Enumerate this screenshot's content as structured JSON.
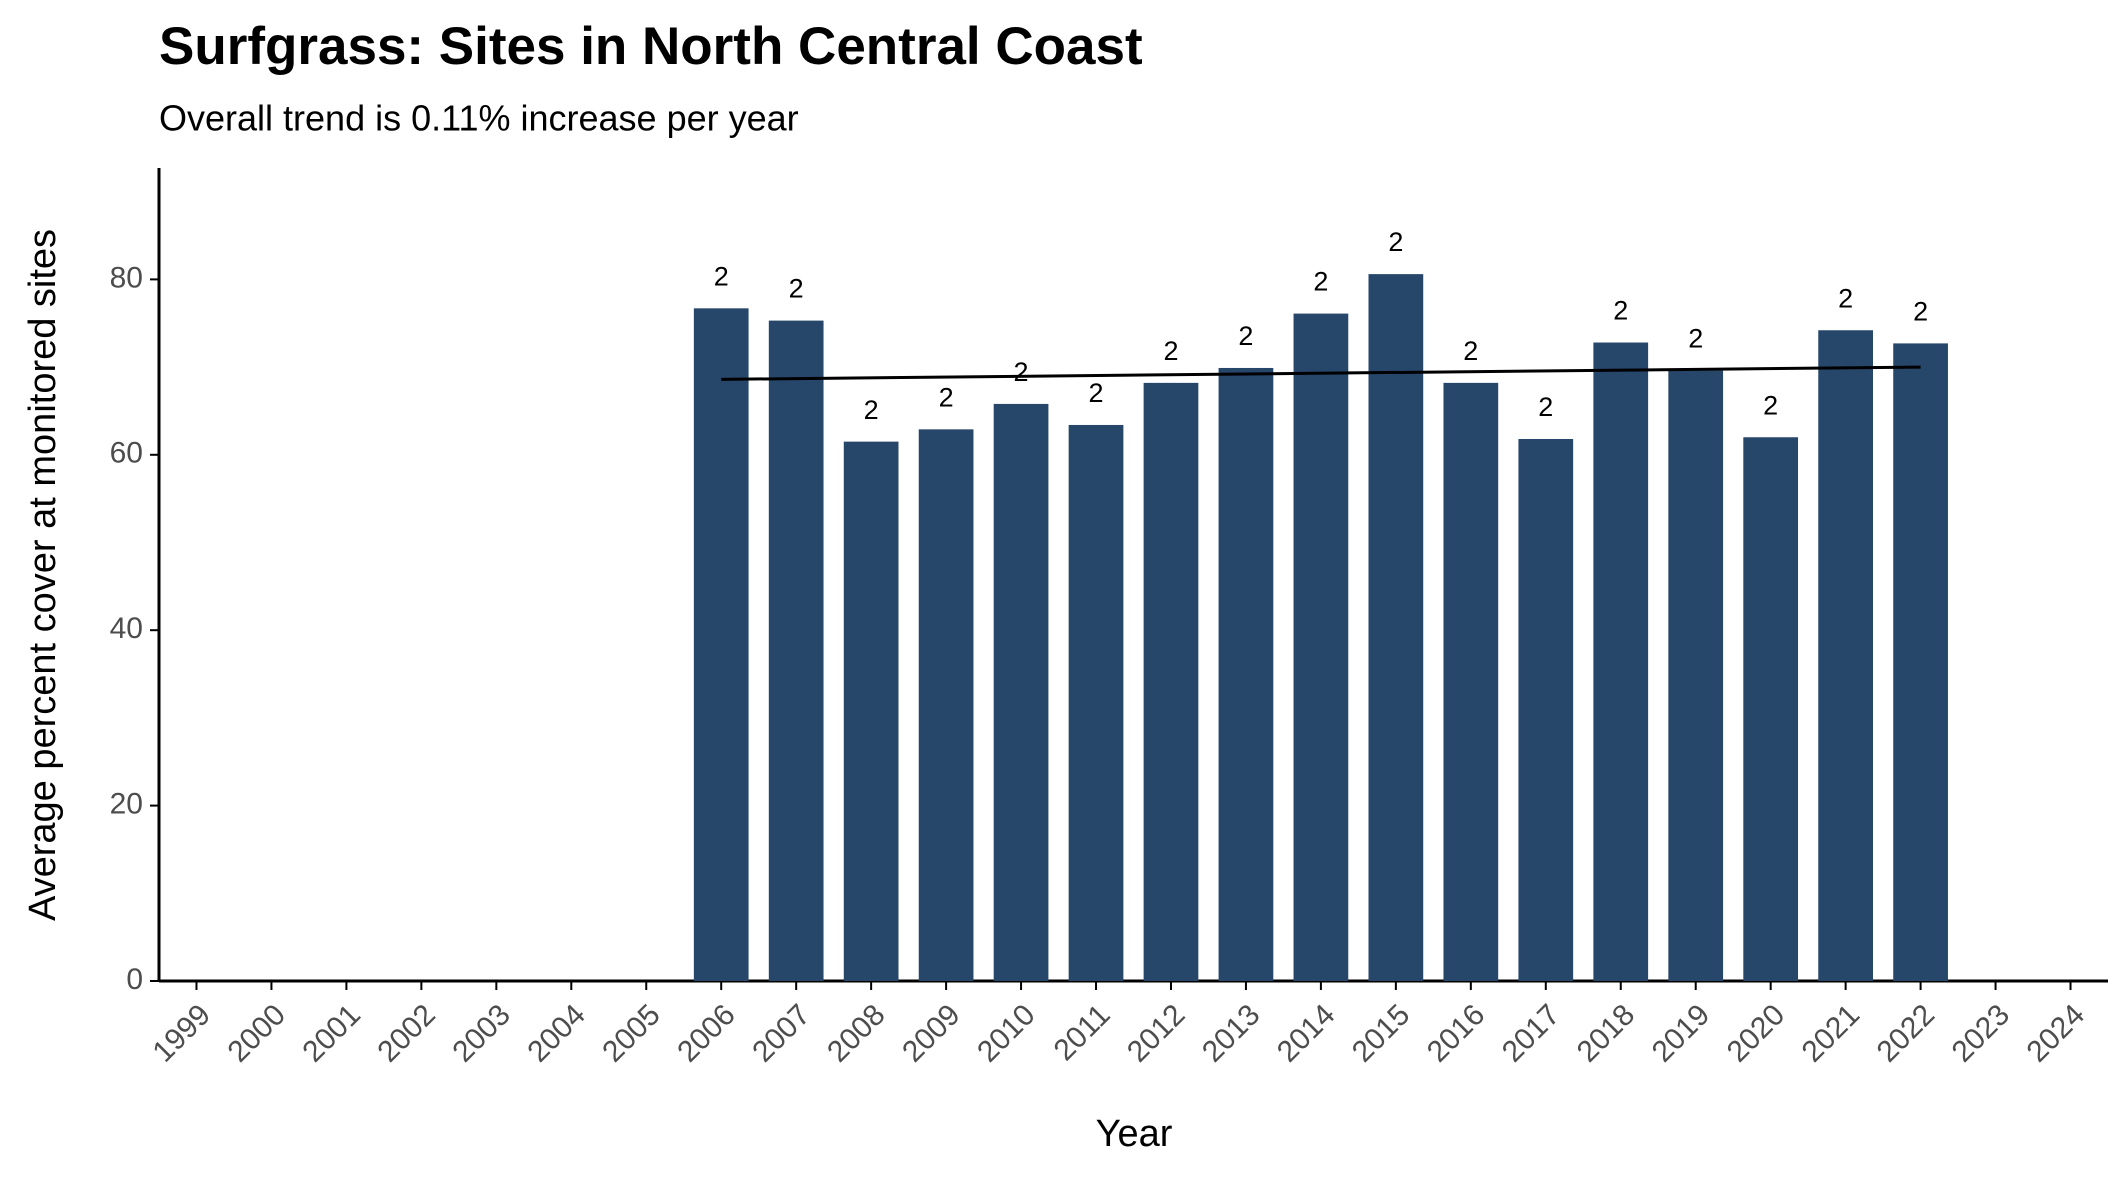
{
  "chart_data": {
    "type": "bar",
    "title": "Surfgrass: Sites in North Central Coast",
    "subtitle": "Overall trend is 0.11% increase per year",
    "x_label": "Year",
    "y_label": "Average percent cover at monitored sites",
    "categories": [
      "1999",
      "2000",
      "2001",
      "2002",
      "2003",
      "2004",
      "2005",
      "2006",
      "2007",
      "2008",
      "2009",
      "2010",
      "2011",
      "2012",
      "2013",
      "2014",
      "2015",
      "2016",
      "2017",
      "2018",
      "2019",
      "2020",
      "2021",
      "2022",
      "2023",
      "2024"
    ],
    "values": [
      null,
      null,
      null,
      null,
      null,
      null,
      null,
      76.7,
      75.3,
      61.5,
      62.9,
      65.8,
      63.4,
      68.2,
      69.9,
      76.1,
      80.6,
      68.2,
      61.8,
      72.8,
      69.6,
      62.0,
      74.2,
      72.7,
      null,
      null
    ],
    "counts": [
      null,
      null,
      null,
      null,
      null,
      null,
      null,
      2,
      2,
      2,
      2,
      2,
      2,
      2,
      2,
      2,
      2,
      2,
      2,
      2,
      2,
      2,
      2,
      2,
      null,
      null
    ],
    "trend": {
      "categories": [
        "2006",
        "2022"
      ],
      "values": [
        68.6,
        70.0
      ],
      "color": "#000000"
    },
    "color": "#26466a",
    "ylim": [
      0,
      92.7
    ],
    "yticks": [
      0,
      20,
      40,
      60,
      80
    ],
    "grid": false
  }
}
